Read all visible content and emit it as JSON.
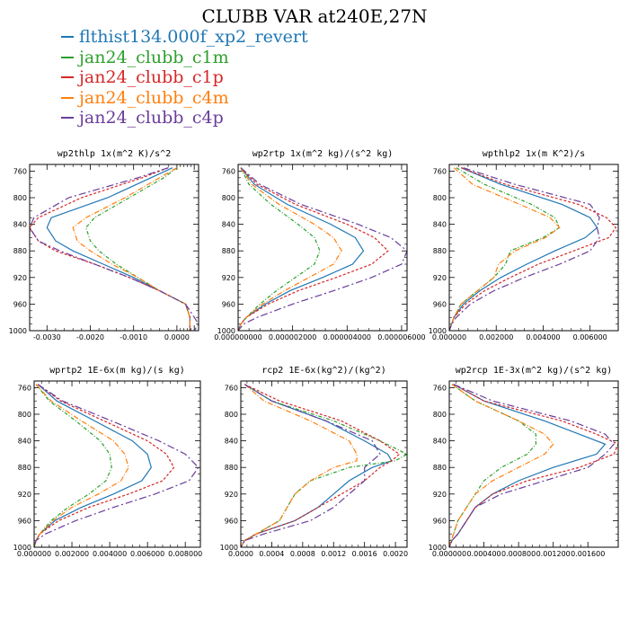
{
  "title": "CLUBB VAR at240E,27N",
  "legend": [
    {
      "label": "flthist134.000f_xp2_revert",
      "color": "#1f77b4"
    },
    {
      "label": "jan24_clubb_c1m",
      "color": "#2ca02c"
    },
    {
      "label": "jan24_clubb_c1p",
      "color": "#d62728"
    },
    {
      "label": "jan24_clubb_c4m",
      "color": "#ff7f0e"
    },
    {
      "label": "jan24_clubb_c4p",
      "color": "#6a3d9a"
    }
  ],
  "chart_data": [
    {
      "type": "line",
      "title": "wp2thlp  1x(m^2 K)/s^2",
      "xlim": [
        -0.0034,
        0.0005
      ],
      "ylim": [
        1000,
        750
      ],
      "xticks": [
        -0.003,
        -0.002,
        -0.001,
        0.0,
        0.0004
      ],
      "xtick_labels": [
        "-0.0030",
        "-0.0020",
        "-0.0010",
        "0.0000",
        ""
      ],
      "yticks": [
        760,
        800,
        840,
        880,
        920,
        960,
        1000
      ],
      "y": [
        755,
        770,
        800,
        830,
        845,
        865,
        880,
        900,
        920,
        940,
        960,
        980,
        990,
        1000
      ],
      "series": [
        {
          "name": "flthist134.000f_xp2_revert",
          "values": [
            -0.0001,
            -0.0006,
            -0.0016,
            -0.0029,
            -0.003,
            -0.0028,
            -0.0024,
            -0.0017,
            -0.001,
            -0.0004,
            0.0002,
            0.0003,
            0.0003,
            0.0003
          ]
        },
        {
          "name": "jan24_clubb_c1m",
          "values": [
            0.0,
            -0.0003,
            -0.0011,
            -0.0019,
            -0.0021,
            -0.002,
            -0.0018,
            -0.0014,
            -0.0009,
            -0.0004,
            0.0002,
            0.0003,
            0.0003,
            0.0003
          ]
        },
        {
          "name": "jan24_clubb_c1p",
          "values": [
            -0.0002,
            -0.0008,
            -0.0022,
            -0.0032,
            -0.0034,
            -0.0032,
            -0.0028,
            -0.0019,
            -0.0011,
            -0.0004,
            0.0002,
            0.0003,
            0.0003,
            0.0003
          ]
        },
        {
          "name": "jan24_clubb_c4m",
          "values": [
            0.0,
            -0.0004,
            -0.0012,
            -0.0021,
            -0.0024,
            -0.0023,
            -0.002,
            -0.0015,
            -0.0009,
            -0.0004,
            0.0002,
            0.0003,
            0.0003,
            0.0003
          ]
        },
        {
          "name": "jan24_clubb_c4p",
          "values": [
            -0.0002,
            -0.0009,
            -0.0025,
            -0.0033,
            -0.0034,
            -0.0032,
            -0.0027,
            -0.0019,
            -0.0011,
            -0.0004,
            0.0002,
            0.0004,
            0.0005,
            0.0004
          ]
        }
      ]
    },
    {
      "type": "line",
      "title": "wp2rtp  1x(m^2 kg)/(s^2 kg)",
      "xlim": [
        0,
        6.2e-06
      ],
      "ylim": [
        1000,
        750
      ],
      "xticks": [
        0,
        2e-06,
        4e-06,
        6e-06
      ],
      "xtick_labels": [
        "0.000000000",
        "0.000002000",
        "0.000004000",
        "0.000006000"
      ],
      "yticks": [
        760,
        800,
        840,
        880,
        920,
        960,
        1000
      ],
      "y": [
        755,
        780,
        810,
        840,
        860,
        880,
        900,
        920,
        940,
        960,
        980,
        990,
        1000
      ],
      "series": [
        {
          "name": "flthist134.000f_xp2_revert",
          "values": [
            1e-07,
            6e-07,
            1.8e-06,
            3.4e-06,
            4.3e-06,
            4.6e-06,
            4.2e-06,
            3.1e-06,
            1.9e-06,
            1e-06,
            3e-07,
            1e-07,
            0
          ]
        },
        {
          "name": "jan24_clubb_c1m",
          "values": [
            1e-07,
            4e-07,
            1.2e-06,
            2.2e-06,
            2.8e-06,
            3e-06,
            2.8e-06,
            2.1e-06,
            1.4e-06,
            8e-07,
            3e-07,
            1e-07,
            0
          ]
        },
        {
          "name": "jan24_clubb_c1p",
          "values": [
            1e-07,
            7e-07,
            2.1e-06,
            4e-06,
            5e-06,
            5.5e-06,
            4.9e-06,
            3.6e-06,
            2.2e-06,
            1.1e-06,
            3e-07,
            1e-07,
            0
          ]
        },
        {
          "name": "jan24_clubb_c4m",
          "values": [
            1e-07,
            5e-07,
            1.5e-06,
            2.8e-06,
            3.5e-06,
            3.8e-06,
            3.5e-06,
            2.6e-06,
            1.7e-06,
            9e-07,
            3e-07,
            1e-07,
            0
          ]
        },
        {
          "name": "jan24_clubb_c4p",
          "values": [
            1e-07,
            8e-07,
            2.3e-06,
            4.4e-06,
            5.6e-06,
            6.2e-06,
            6e-06,
            4.9e-06,
            3.5e-06,
            2e-06,
            7e-07,
            2e-07,
            0
          ]
        }
      ]
    },
    {
      "type": "line",
      "title": "wpthlp2  1x(m K^2)/s",
      "xlim": [
        0,
        0.0072
      ],
      "ylim": [
        1000,
        750
      ],
      "xticks": [
        0,
        0.002,
        0.004,
        0.006
      ],
      "xtick_labels": [
        "0.000000",
        "0.002000",
        "0.004000",
        "0.006000"
      ],
      "yticks": [
        760,
        800,
        840,
        880,
        920,
        960,
        1000
      ],
      "y": [
        755,
        780,
        810,
        830,
        845,
        860,
        880,
        900,
        920,
        940,
        960,
        980,
        990,
        1000
      ],
      "series": [
        {
          "name": "flthist134.000f_xp2_revert",
          "values": [
            0.0005,
            0.0022,
            0.0048,
            0.006,
            0.0063,
            0.0058,
            0.0045,
            0.0033,
            0.0022,
            0.0013,
            0.0006,
            0.0002,
            0.0001,
            0
          ]
        },
        {
          "name": "jan24_clubb_c1m",
          "values": [
            0.0003,
            0.0015,
            0.0035,
            0.0045,
            0.0047,
            0.004,
            0.0026,
            0.0024,
            0.0019,
            0.0012,
            0.0005,
            0.0002,
            0.0001,
            0
          ]
        },
        {
          "name": "jan24_clubb_c1p",
          "values": [
            0.0005,
            0.0024,
            0.0055,
            0.0067,
            0.0071,
            0.0068,
            0.0053,
            0.0038,
            0.0026,
            0.0015,
            0.0007,
            0.0002,
            0.0001,
            0
          ]
        },
        {
          "name": "jan24_clubb_c4m",
          "values": [
            0.0002,
            0.001,
            0.003,
            0.0043,
            0.0047,
            0.0041,
            0.0028,
            0.0021,
            0.0019,
            0.0012,
            0.0005,
            0.0002,
            0.0001,
            0
          ]
        },
        {
          "name": "jan24_clubb_c4p",
          "values": [
            0.0006,
            0.0028,
            0.006,
            0.0064,
            0.0063,
            0.0064,
            0.006,
            0.0047,
            0.0032,
            0.0019,
            0.0009,
            0.0003,
            0.0001,
            0
          ]
        }
      ]
    },
    {
      "type": "line",
      "title": "wprtp2  1E-6x(m kg)/(s kg)",
      "xlim": [
        0,
        0.0088
      ],
      "ylim": [
        1000,
        750
      ],
      "xticks": [
        0,
        0.002,
        0.004,
        0.006,
        0.008
      ],
      "xtick_labels": [
        "0.000000",
        "0.002000",
        "0.004000",
        "0.006000",
        "0.008000"
      ],
      "yticks": [
        760,
        800,
        840,
        880,
        920,
        960,
        1000
      ],
      "y": [
        755,
        780,
        810,
        840,
        860,
        880,
        900,
        920,
        940,
        960,
        980,
        990,
        1000
      ],
      "series": [
        {
          "name": "flthist134.000f_xp2_revert",
          "values": [
            0.0002,
            0.0012,
            0.0032,
            0.0052,
            0.006,
            0.0062,
            0.0057,
            0.0042,
            0.0025,
            0.0011,
            0.0003,
            0.0001,
            0
          ]
        },
        {
          "name": "jan24_clubb_c1m",
          "values": [
            0.0001,
            0.0008,
            0.0022,
            0.0035,
            0.004,
            0.0041,
            0.0038,
            0.0029,
            0.0018,
            0.0009,
            0.0003,
            0.0001,
            0
          ]
        },
        {
          "name": "jan24_clubb_c1p",
          "values": [
            0.0002,
            0.0014,
            0.0037,
            0.006,
            0.007,
            0.0074,
            0.0068,
            0.005,
            0.0029,
            0.0013,
            0.0003,
            0.0001,
            0
          ]
        },
        {
          "name": "jan24_clubb_c4m",
          "values": [
            0.0001,
            0.0009,
            0.0025,
            0.0042,
            0.0048,
            0.005,
            0.0046,
            0.0034,
            0.002,
            0.001,
            0.0003,
            0.0001,
            0
          ]
        },
        {
          "name": "jan24_clubb_c4p",
          "values": [
            0.0002,
            0.0015,
            0.0041,
            0.0066,
            0.008,
            0.0087,
            0.0082,
            0.0064,
            0.0042,
            0.0022,
            0.0006,
            0.0001,
            0
          ]
        }
      ]
    },
    {
      "type": "line",
      "title": "rcp2  1E-6x(kg^2)/(kg^2)",
      "xlim": [
        0,
        0.00215
      ],
      "ylim": [
        1000,
        750
      ],
      "xticks": [
        0,
        0.0004,
        0.0008,
        0.0012,
        0.0016,
        0.002
      ],
      "xtick_labels": [
        "0.0000",
        "0.0004",
        "0.0008",
        "0.0012",
        "0.0016",
        "0.0020"
      ],
      "yticks": [
        760,
        800,
        840,
        880,
        920,
        960,
        1000
      ],
      "y": [
        755,
        780,
        810,
        840,
        860,
        870,
        880,
        900,
        920,
        940,
        960,
        980,
        990,
        1000
      ],
      "series": [
        {
          "name": "flthist134.000f_xp2_revert",
          "values": [
            5e-05,
            0.0004,
            0.0011,
            0.0016,
            0.0019,
            0.00195,
            0.0017,
            0.0014,
            0.0012,
            0.001,
            0.0007,
            0.0002,
            5e-05,
            0
          ]
        },
        {
          "name": "jan24_clubb_c1m",
          "values": [
            5e-05,
            0.0004,
            0.0012,
            0.0018,
            0.00215,
            0.002,
            0.0014,
            0.0009,
            0.0007,
            0.0006,
            0.0005,
            0.0002,
            5e-05,
            0
          ]
        },
        {
          "name": "jan24_clubb_c1p",
          "values": [
            5e-05,
            0.0005,
            0.0013,
            0.0018,
            0.00205,
            0.00195,
            0.0018,
            0.0016,
            0.0013,
            0.001,
            0.0007,
            0.0002,
            5e-05,
            0
          ]
        },
        {
          "name": "jan24_clubb_c4m",
          "values": [
            5e-05,
            0.0003,
            0.0009,
            0.0014,
            0.0015,
            0.0015,
            0.0012,
            0.0009,
            0.0007,
            0.0006,
            0.0005,
            0.0002,
            5e-05,
            0
          ]
        },
        {
          "name": "jan24_clubb_c4p",
          "values": [
            5e-05,
            0.0004,
            0.0011,
            0.0017,
            0.0018,
            0.0017,
            0.0016,
            0.0016,
            0.0014,
            0.0012,
            0.0009,
            0.0003,
            5e-05,
            0
          ]
        }
      ]
    },
    {
      "type": "line",
      "title": "wp2rcp  1E-3x(m^2 kg)/(s^2 kg)",
      "xlim": [
        0,
        0.00195
      ],
      "ylim": [
        1000,
        750
      ],
      "xticks": [
        0,
        0.0004,
        0.0008,
        0.0012,
        0.0016
      ],
      "xtick_labels": [
        "0.000000",
        "0.000400",
        "0.000800",
        "0.001200",
        "0.001600"
      ],
      "yticks": [
        760,
        800,
        840,
        880,
        920,
        960,
        1000
      ],
      "y": [
        755,
        780,
        810,
        830,
        845,
        860,
        880,
        900,
        920,
        940,
        960,
        980,
        990,
        1000
      ],
      "series": [
        {
          "name": "flthist134.000f_xp2_revert",
          "values": [
            5e-05,
            0.0004,
            0.0011,
            0.0015,
            0.0018,
            0.0017,
            0.0012,
            0.0008,
            0.0005,
            0.0003,
            0.0002,
            0.0001,
            3e-05,
            0
          ]
        },
        {
          "name": "jan24_clubb_c1m",
          "values": [
            3e-05,
            0.0003,
            0.0008,
            0.001,
            0.001,
            0.0009,
            0.0006,
            0.0004,
            0.0003,
            0.0002,
            0.0001,
            5e-05,
            2e-05,
            0
          ]
        },
        {
          "name": "jan24_clubb_c1p",
          "values": [
            5e-05,
            0.0004,
            0.0013,
            0.0017,
            0.00195,
            0.0019,
            0.0015,
            0.0009,
            0.0005,
            0.0003,
            0.0002,
            0.0001,
            3e-05,
            0
          ]
        },
        {
          "name": "jan24_clubb_c4m",
          "values": [
            3e-05,
            0.0003,
            0.0008,
            0.0011,
            0.0012,
            0.0011,
            0.0008,
            0.0005,
            0.0003,
            0.0002,
            0.0001,
            5e-05,
            2e-05,
            0
          ]
        },
        {
          "name": "jan24_clubb_c4p",
          "values": [
            5e-05,
            0.0005,
            0.0014,
            0.0018,
            0.0019,
            0.0018,
            0.0016,
            0.0011,
            0.0006,
            0.0003,
            0.0002,
            0.0001,
            3e-05,
            0
          ]
        }
      ]
    }
  ]
}
